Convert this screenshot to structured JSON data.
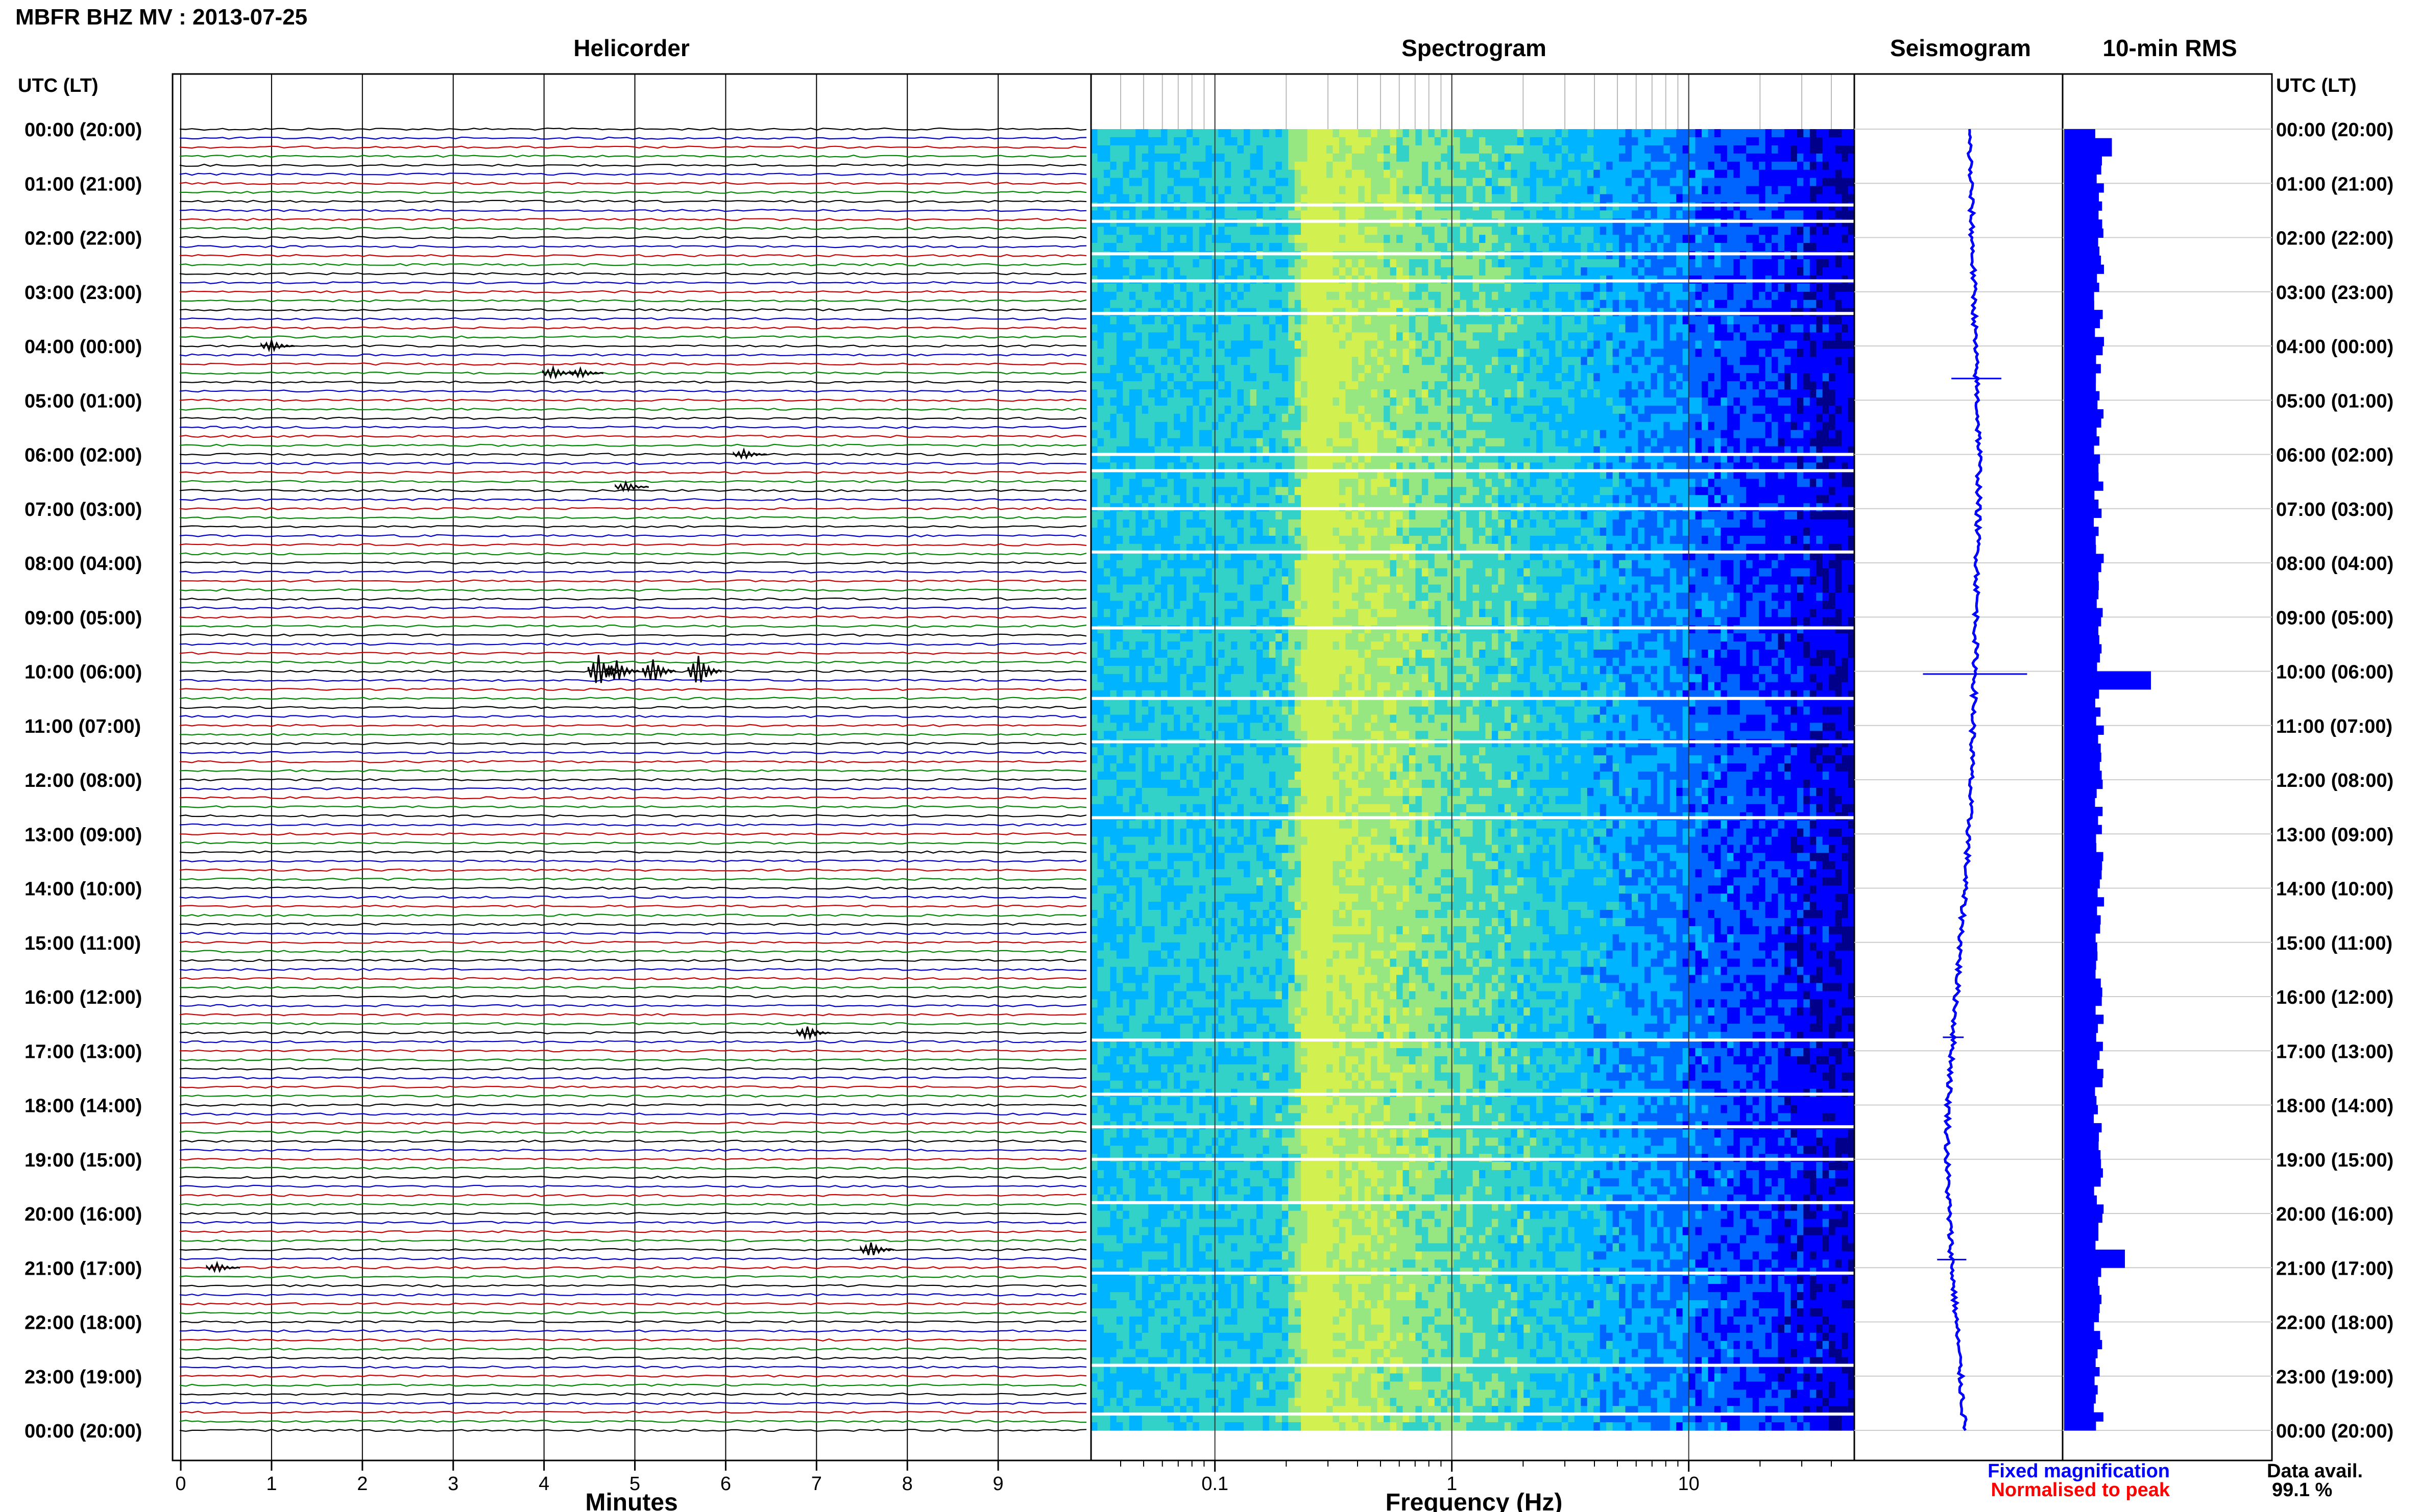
{
  "header": {
    "title": "MBFR BHZ MV : 2013-07-25",
    "utc_label_left": "UTC (LT)",
    "utc_label_right": "UTC (LT)"
  },
  "panels": {
    "helicorder": "Helicorder",
    "spectrogram": "Spectrogram",
    "seismogram": "Seismogram",
    "rms": "10-min RMS"
  },
  "time_labels": [
    "00:00 (20:00)",
    "01:00 (21:00)",
    "02:00 (22:00)",
    "03:00 (23:00)",
    "04:00 (00:00)",
    "05:00 (01:00)",
    "06:00 (02:00)",
    "07:00 (03:00)",
    "08:00 (04:00)",
    "09:00 (05:00)",
    "10:00 (06:00)",
    "11:00 (07:00)",
    "12:00 (08:00)",
    "13:00 (09:00)",
    "14:00 (10:00)",
    "15:00 (11:00)",
    "16:00 (12:00)",
    "17:00 (13:00)",
    "18:00 (14:00)",
    "19:00 (15:00)",
    "20:00 (16:00)",
    "21:00 (17:00)",
    "22:00 (18:00)",
    "23:00 (19:00)",
    "00:00 (20:00)"
  ],
  "legend": {
    "fixed": "Fixed magnification",
    "normalised": "Normalised to peak",
    "fixed_color": "#0000ff",
    "normalised_color": "#ff0000"
  },
  "data_availability": {
    "label": "Data avail.",
    "value": "99.1 %"
  },
  "chart_data": [
    {
      "type": "line",
      "panel": "Helicorder",
      "xlabel": "Minutes",
      "x_ticks": [
        "0",
        "1",
        "2",
        "3",
        "4",
        "5",
        "6",
        "7",
        "8",
        "9"
      ],
      "xlim": [
        0,
        10
      ],
      "rows_per_hour": 6,
      "trace_colors": [
        "#000000",
        "#0000cc",
        "#cc0000",
        "#008800"
      ],
      "events": [
        {
          "hour": 4.0,
          "minute": 1.0,
          "amp": 0.6
        },
        {
          "hour": 4.5,
          "minute": 4.1,
          "amp": 0.6
        },
        {
          "hour": 4.5,
          "minute": 4.4,
          "amp": 0.5
        },
        {
          "hour": 6.0,
          "minute": 6.2,
          "amp": 0.5
        },
        {
          "hour": 6.6,
          "minute": 4.9,
          "amp": 0.5
        },
        {
          "hour": 10.0,
          "minute": 4.6,
          "amp": 1.8
        },
        {
          "hour": 10.0,
          "minute": 4.8,
          "amp": 1.2
        },
        {
          "hour": 10.0,
          "minute": 5.2,
          "amp": 1.3
        },
        {
          "hour": 10.0,
          "minute": 5.7,
          "amp": 1.7
        },
        {
          "hour": 16.67,
          "minute": 6.9,
          "amp": 0.7
        },
        {
          "hour": 20.67,
          "minute": 7.6,
          "amp": 0.8
        },
        {
          "hour": 21.0,
          "minute": 0.4,
          "amp": 0.5
        }
      ]
    },
    {
      "type": "heatmap",
      "panel": "Spectrogram",
      "xlabel": "Frequency (Hz)",
      "x_scale": "log",
      "x_ticks": [
        "0.1",
        "1",
        "10"
      ],
      "xlim": [
        0.03,
        50
      ],
      "peak_frequency_hz": 0.25,
      "colormap": [
        "#00008b",
        "#0000ff",
        "#0064ff",
        "#00b4ff",
        "#32d2c8",
        "#96e682",
        "#d2f050"
      ],
      "gap_hours": [
        1.4,
        1.7,
        2.3,
        2.8,
        3.4,
        6.0,
        6.3,
        7.0,
        7.8,
        9.2,
        10.5,
        11.3,
        12.7,
        16.8,
        17.8,
        18.4,
        19.0,
        19.8,
        21.1,
        22.8,
        23.7
      ]
    },
    {
      "type": "line",
      "panel": "Seismogram",
      "orientation": "vertical",
      "drift": [
        0.1,
        0.12,
        0.13,
        0.15,
        0.16,
        0.18,
        0.2,
        0.19,
        0.18,
        0.17,
        0.16,
        0.14,
        0.12,
        0.1,
        0.06,
        0.02,
        -0.02,
        -0.06,
        -0.1,
        -0.11,
        -0.09,
        -0.06,
        -0.02,
        0.02,
        0.06
      ],
      "spikes": [
        {
          "hour": 4.6,
          "amp": 0.12
        },
        {
          "hour": 10.05,
          "amp": 0.25
        },
        {
          "hour": 16.75,
          "amp": 0.05
        },
        {
          "hour": 20.85,
          "amp": 0.07
        }
      ]
    },
    {
      "type": "bar",
      "panel": "10-min RMS",
      "orientation": "horizontal",
      "bins_per_hour": 6,
      "baseline": 0.4,
      "peaks": [
        {
          "hour": 0.3,
          "value": 0.55
        },
        {
          "hour": 10.1,
          "value": 1.0
        },
        {
          "hour": 20.8,
          "value": 0.7
        }
      ]
    }
  ]
}
